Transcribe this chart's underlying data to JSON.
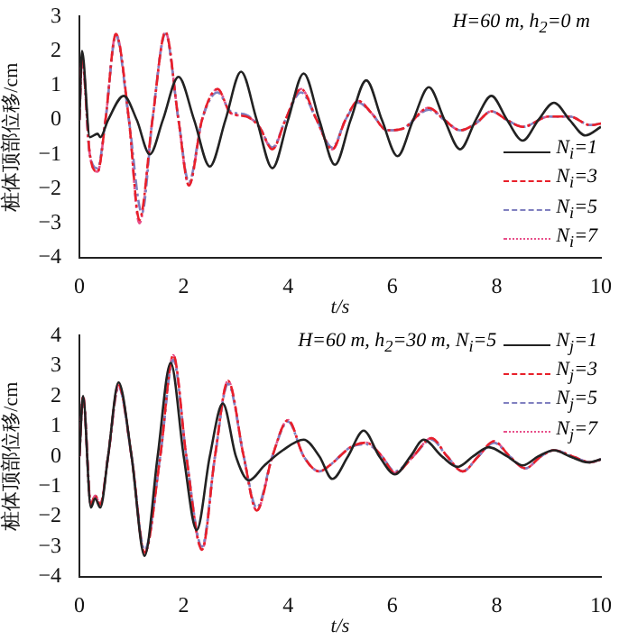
{
  "chart_data": [
    {
      "type": "line",
      "xlabel": "t/s",
      "ylabel": "桩体顶部位移/cm",
      "annotations": [
        "H=60 m, h$_{2}$=0 m"
      ],
      "xlim": [
        0,
        10
      ],
      "xticks": [
        0,
        2,
        4,
        6,
        8,
        10
      ],
      "ylim": [
        -4,
        3
      ],
      "yticks": [
        -4,
        -3,
        -2,
        -1,
        0,
        1,
        2,
        3
      ],
      "grid": false,
      "legend": "bottom right",
      "marker": "none",
      "series": [
        {
          "name": "N$_{i}$=1",
          "color": "#222222",
          "line_style": "solid",
          "x": [
            0,
            0.05,
            0.2,
            0.35,
            0.4,
            0.55,
            0.85,
            1.1,
            1.35,
            1.6,
            1.9,
            2.2,
            2.5,
            2.8,
            3.1,
            3.4,
            3.7,
            4.0,
            4.3,
            4.6,
            4.9,
            5.2,
            5.5,
            5.8,
            6.1,
            6.4,
            6.7,
            7.0,
            7.3,
            7.6,
            7.9,
            8.2,
            8.5,
            8.8,
            9.1,
            9.4,
            9.7,
            10
          ],
          "values": [
            0,
            2.0,
            -0.5,
            -0.4,
            -0.5,
            0,
            0.7,
            0,
            -1.0,
            0,
            1.25,
            0,
            -1.35,
            0,
            1.4,
            0,
            -1.4,
            0,
            1.35,
            0,
            -1.3,
            0,
            1.15,
            0,
            -1.05,
            0,
            0.95,
            0,
            -0.85,
            0,
            0.7,
            0,
            -0.6,
            0,
            0.5,
            0,
            -0.45,
            -0.2
          ]
        },
        {
          "name": "N$_{i}$=3",
          "color": "#e8202a",
          "line_style": "dashed",
          "x": [
            0,
            0.05,
            0.2,
            0.35,
            0.5,
            0.7,
            0.95,
            1.15,
            1.4,
            1.65,
            1.9,
            2.1,
            2.35,
            2.65,
            2.9,
            3.2,
            3.45,
            3.7,
            3.95,
            4.25,
            4.55,
            4.85,
            5.1,
            5.35,
            5.6,
            5.9,
            6.2,
            6.7,
            7.0,
            7.3,
            7.6,
            7.9,
            8.2,
            8.5,
            9.0,
            9.4,
            9.8,
            10
          ],
          "values": [
            0,
            1.8,
            -1.0,
            -1.5,
            0,
            2.5,
            0,
            -2.9,
            0,
            2.55,
            0,
            -1.9,
            0,
            0.9,
            0.2,
            0.1,
            -0.2,
            -0.85,
            0,
            0.9,
            0,
            -0.85,
            0,
            0.55,
            0.2,
            -0.3,
            -0.25,
            0.35,
            0,
            -0.3,
            -0.1,
            0.25,
            0,
            -0.2,
            0.1,
            0.1,
            -0.15,
            -0.1
          ]
        },
        {
          "name": "N$_{i}$=5",
          "color": "#8080c0",
          "line_style": "dashed",
          "x": [
            0,
            0.05,
            0.2,
            0.35,
            0.5,
            0.7,
            0.95,
            1.2,
            1.4,
            1.65,
            1.9,
            2.1,
            2.35,
            2.65,
            2.9,
            3.2,
            3.45,
            3.7,
            3.95,
            4.25,
            4.55,
            4.85,
            5.1,
            5.35,
            5.6,
            5.9,
            6.2,
            6.7,
            7.0,
            7.3,
            7.6,
            7.9,
            8.2,
            8.5,
            9.0,
            9.4,
            9.8,
            10
          ],
          "values": [
            0,
            1.8,
            -1.0,
            -1.4,
            0,
            2.45,
            0,
            -2.7,
            0,
            2.5,
            0,
            -1.8,
            0,
            0.8,
            0.25,
            0.15,
            -0.2,
            -0.8,
            0,
            0.8,
            0,
            -0.8,
            0,
            0.5,
            0.2,
            -0.3,
            -0.25,
            0.3,
            0,
            -0.3,
            -0.1,
            0.25,
            0,
            -0.2,
            0.1,
            0.1,
            -0.15,
            -0.1
          ]
        },
        {
          "name": "N$_{i}$=7",
          "color": "#e8508a",
          "line_style": "dotted",
          "x": [
            0,
            0.05,
            0.2,
            0.35,
            0.5,
            0.7,
            0.95,
            1.15,
            1.4,
            1.65,
            1.9,
            2.1,
            2.35,
            2.65,
            2.9,
            3.2,
            3.45,
            3.7,
            3.95,
            4.25,
            4.55,
            4.85,
            5.1,
            5.35,
            5.6,
            5.9,
            6.2,
            6.7,
            7.0,
            7.3,
            7.6,
            7.9,
            8.2,
            8.5,
            9.0,
            9.4,
            9.8,
            10
          ],
          "values": [
            0,
            1.8,
            -1.0,
            -1.5,
            0,
            2.5,
            0,
            -3.0,
            0,
            2.55,
            0,
            -1.9,
            0,
            0.9,
            0.2,
            0.1,
            -0.2,
            -0.85,
            0,
            0.9,
            0,
            -0.85,
            0,
            0.55,
            0.2,
            -0.3,
            -0.25,
            0.35,
            0,
            -0.3,
            -0.1,
            0.25,
            0,
            -0.2,
            0.1,
            0.1,
            -0.15,
            -0.1
          ]
        }
      ]
    },
    {
      "type": "line",
      "xlabel": "t/s",
      "ylabel": "桩体顶部位移/cm",
      "annotations": [
        "H=60 m, h$_{2}$=30 m, N$_{i}$=5"
      ],
      "xlim": [
        0,
        10
      ],
      "xticks": [
        0,
        2,
        4,
        6,
        8,
        10
      ],
      "ylim": [
        -4,
        4
      ],
      "yticks": [
        -4,
        -3,
        -2,
        -1,
        0,
        1,
        2,
        3,
        4
      ],
      "grid": false,
      "legend": "top right",
      "marker": "none",
      "series": [
        {
          "name": "N$_{j}$=1",
          "color": "#222222",
          "line_style": "solid",
          "x": [
            0,
            0.07,
            0.22,
            0.3,
            0.4,
            0.55,
            0.75,
            1.0,
            1.25,
            1.5,
            1.75,
            2.0,
            2.25,
            2.5,
            2.75,
            3.0,
            3.25,
            3.55,
            3.9,
            4.3,
            4.6,
            4.85,
            5.15,
            5.45,
            5.75,
            6.05,
            6.35,
            6.6,
            6.95,
            7.25,
            7.55,
            7.85,
            8.2,
            8.5,
            8.8,
            9.1,
            9.4,
            9.75,
            10
          ],
          "values": [
            0,
            2.0,
            -1.7,
            -1.4,
            -1.7,
            0,
            2.45,
            0,
            -3.3,
            0,
            3.1,
            0,
            -2.45,
            0,
            1.75,
            0,
            -0.8,
            -0.3,
            0.2,
            0.55,
            0,
            -0.75,
            0,
            0.85,
            0,
            -0.6,
            0,
            0.55,
            0,
            -0.35,
            0,
            0.3,
            0,
            -0.3,
            0,
            0.2,
            0,
            -0.2,
            -0.1
          ]
        },
        {
          "name": "N$_{j}$=3",
          "color": "#e8202a",
          "line_style": "dashed",
          "x": [
            0,
            0.07,
            0.22,
            0.3,
            0.4,
            0.55,
            0.75,
            1.0,
            1.25,
            1.55,
            1.8,
            2.05,
            2.35,
            2.6,
            2.85,
            3.15,
            3.4,
            3.7,
            4.0,
            4.3,
            4.6,
            4.8,
            5.2,
            5.5,
            5.8,
            6.05,
            6.4,
            6.75,
            7.05,
            7.35,
            7.65,
            7.95,
            8.25,
            8.55,
            8.85,
            9.1,
            9.45,
            9.8,
            10
          ],
          "values": [
            0,
            2.0,
            -1.6,
            -1.3,
            -1.6,
            0,
            2.35,
            0,
            -3.2,
            0,
            3.35,
            0,
            -3.1,
            0,
            2.5,
            0,
            -1.8,
            0,
            1.2,
            0,
            -0.5,
            -0.3,
            0.3,
            0.45,
            0,
            -0.55,
            0,
            0.6,
            0,
            -0.5,
            0,
            0.5,
            0,
            -0.4,
            0,
            0.2,
            0,
            -0.2,
            -0.1
          ]
        },
        {
          "name": "N$_{j}$=5",
          "color": "#8080c0",
          "line_style": "dashed",
          "x": [
            0,
            0.07,
            0.22,
            0.3,
            0.4,
            0.55,
            0.75,
            1.0,
            1.25,
            1.55,
            1.8,
            2.05,
            2.35,
            2.6,
            2.85,
            3.15,
            3.4,
            3.7,
            4.0,
            4.3,
            4.6,
            4.8,
            5.2,
            5.5,
            5.8,
            6.05,
            6.4,
            6.75,
            7.05,
            7.35,
            7.65,
            7.95,
            8.25,
            8.55,
            8.85,
            9.1,
            9.45,
            9.8,
            10
          ],
          "values": [
            0,
            2.0,
            -1.6,
            -1.3,
            -1.6,
            0,
            2.3,
            0,
            -3.1,
            0,
            3.2,
            0,
            -3.0,
            0,
            2.4,
            0,
            -1.7,
            0,
            1.15,
            0,
            -0.5,
            -0.3,
            0.3,
            0.4,
            0,
            -0.5,
            0,
            0.55,
            0,
            -0.5,
            0,
            0.45,
            0,
            -0.4,
            0,
            0.2,
            0,
            -0.2,
            -0.1
          ]
        },
        {
          "name": "N$_{j}$=7",
          "color": "#e8508a",
          "line_style": "dotted",
          "x": [
            0,
            0.07,
            0.22,
            0.3,
            0.4,
            0.55,
            0.75,
            1.0,
            1.25,
            1.55,
            1.8,
            2.05,
            2.35,
            2.6,
            2.85,
            3.15,
            3.4,
            3.7,
            4.0,
            4.3,
            4.6,
            4.8,
            5.2,
            5.5,
            5.8,
            6.05,
            6.4,
            6.75,
            7.05,
            7.35,
            7.65,
            7.95,
            8.25,
            8.55,
            8.85,
            9.1,
            9.45,
            9.8,
            10
          ],
          "values": [
            0,
            2.0,
            -1.6,
            -1.3,
            -1.6,
            0,
            2.35,
            0,
            -3.2,
            0,
            3.35,
            0,
            -3.1,
            0,
            2.5,
            0,
            -1.8,
            0,
            1.2,
            0,
            -0.5,
            -0.3,
            0.3,
            0.45,
            0,
            -0.55,
            0,
            0.6,
            0,
            -0.5,
            0,
            0.5,
            0,
            -0.4,
            0,
            0.2,
            0,
            -0.2,
            -0.1
          ]
        }
      ]
    }
  ]
}
